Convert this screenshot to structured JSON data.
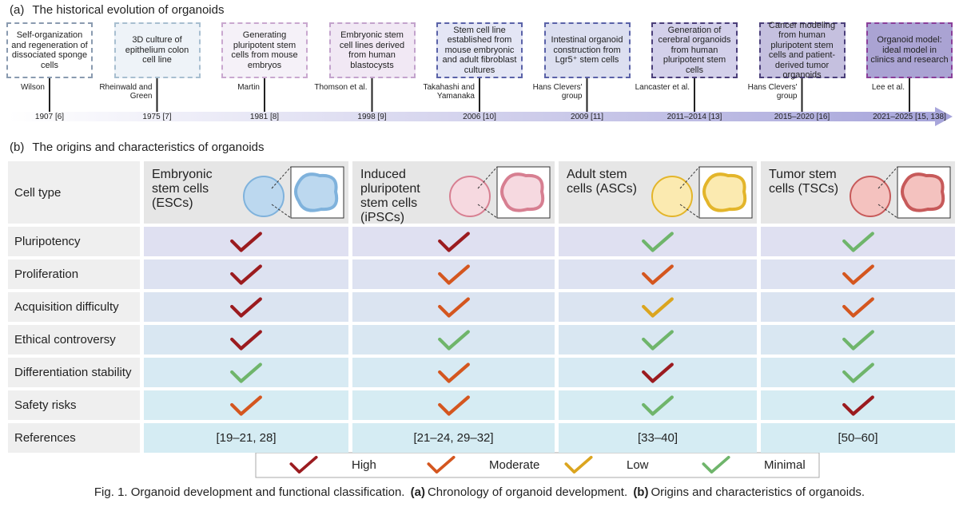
{
  "panel_a": {
    "label": "(a)",
    "title": "The historical evolution of organoids",
    "events": [
      {
        "description": "Self-organization and regeneration of dissociated sponge cells",
        "author": "Wilson",
        "year": "1907 [6]"
      },
      {
        "description": "3D culture of epithelium colon cell line",
        "author": "Rheinwald and Green",
        "year": "1975 [7]"
      },
      {
        "description": "Generating pluripotent stem cells from mouse embryos",
        "author": "Martin",
        "year": "1981 [8]"
      },
      {
        "description": "Embryonic stem cell lines derived from human blastocysts",
        "author": "Thomson et al.",
        "year": "1998 [9]"
      },
      {
        "description": "Stem cell line established from mouse embryonic and adult fibroblast cultures",
        "author": "Takahashi and Yamanaka",
        "year": "2006 [10]"
      },
      {
        "description": "Intestinal organoid construction from Lgr5⁺ stem cells",
        "author": "Hans Clevers' group",
        "year": "2009 [11]"
      },
      {
        "description": "Generation of cerebral organoids from human pluripotent stem cells",
        "author": "Lancaster et al.",
        "year": "2011–2014 [13]"
      },
      {
        "description": "Cancer modeling from human pluripotent stem cells and patient-derived tumor organoids",
        "author": "Hans Clevers' group",
        "year": "2015–2020 [16]"
      },
      {
        "description": "Organoid model: ideal model in clinics and research",
        "author": "Lee et al.",
        "year": "2021–2025 [15, 138]"
      }
    ]
  },
  "panel_b": {
    "label": "(b)",
    "title": "The origins and characteristics of organoids",
    "header": "Cell type",
    "columns": [
      "Embryonic stem cells (ESCs)",
      "Induced pluripotent stem cells (iPSCs)",
      "Adult stem cells (ASCs)",
      "Tumor stem cells (TSCs)"
    ],
    "rows": [
      {
        "label": "Pluripotency",
        "ratings": [
          0,
          0,
          3,
          3
        ]
      },
      {
        "label": "Proliferation",
        "ratings": [
          0,
          1,
          1,
          1
        ]
      },
      {
        "label": "Acquisition difficulty",
        "ratings": [
          0,
          1,
          2,
          1
        ]
      },
      {
        "label": "Ethical controversy",
        "ratings": [
          0,
          3,
          3,
          3
        ]
      },
      {
        "label": "Differentiation stability",
        "ratings": [
          3,
          1,
          0,
          3
        ]
      },
      {
        "label": "Safety risks",
        "ratings": [
          1,
          1,
          3,
          0
        ]
      }
    ],
    "references": {
      "label": "References",
      "values": [
        "[19–21, 28]",
        "[21–24, 29–32]",
        "[33–40]",
        "[50–60]"
      ]
    },
    "legend": [
      {
        "label": "High",
        "color": "#9b1b1f"
      },
      {
        "label": "Moderate",
        "color": "#d4561f"
      },
      {
        "label": "Low",
        "color": "#dba51f"
      },
      {
        "label": "Minimal",
        "color": "#6fb56b"
      }
    ]
  },
  "caption": {
    "prefix": "Fig. 1. Organoid development and functional classification.",
    "a_label": "(a)",
    "a_text": "Chronology of organoid development.",
    "b_label": "(b)",
    "b_text": "Origins and characteristics of organoids."
  }
}
